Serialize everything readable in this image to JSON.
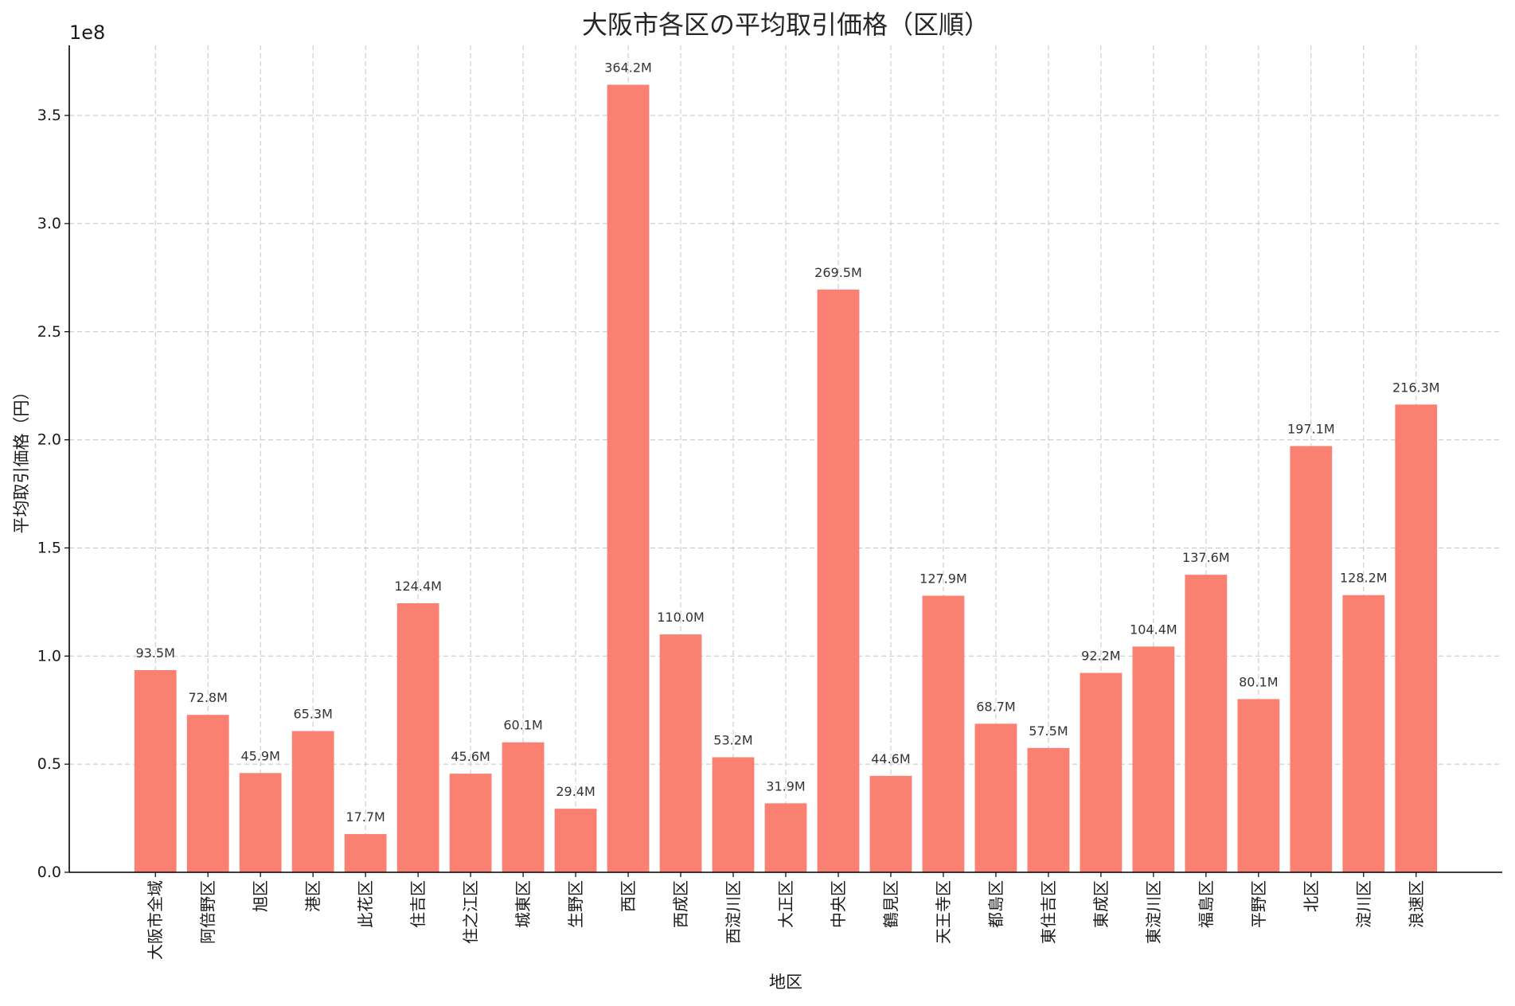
{
  "chart_data": {
    "type": "bar",
    "title": "大阪市各区の平均取引価格（区順）",
    "xlabel": "地区",
    "ylabel": "平均取引価格（円）",
    "y_offset_label": "1e8",
    "categories": [
      "大阪市全域",
      "阿倍野区",
      "旭区",
      "港区",
      "此花区",
      "住吉区",
      "住之江区",
      "城東区",
      "生野区",
      "西区",
      "西成区",
      "西淀川区",
      "大正区",
      "中央区",
      "鶴見区",
      "天王寺区",
      "都島区",
      "東住吉区",
      "東成区",
      "東淀川区",
      "福島区",
      "平野区",
      "北区",
      "淀川区",
      "浪速区"
    ],
    "values": [
      93500000,
      72800000,
      45900000,
      65300000,
      17700000,
      124400000,
      45600000,
      60100000,
      29400000,
      364200000,
      110000000,
      53200000,
      31900000,
      269500000,
      44600000,
      127900000,
      68700000,
      57500000,
      92200000,
      104400000,
      137600000,
      80100000,
      197100000,
      128200000,
      216300000
    ],
    "data_labels": [
      "93.5M",
      "72.8M",
      "45.9M",
      "65.3M",
      "17.7M",
      "124.4M",
      "45.6M",
      "60.1M",
      "29.4M",
      "364.2M",
      "110.0M",
      "53.2M",
      "31.9M",
      "269.5M",
      "44.6M",
      "127.9M",
      "68.7M",
      "57.5M",
      "92.2M",
      "104.4M",
      "137.6M",
      "80.1M",
      "197.1M",
      "128.2M",
      "216.3M"
    ],
    "yticks": [
      0,
      50000000,
      100000000,
      150000000,
      200000000,
      250000000,
      300000000,
      350000000
    ],
    "ytick_labels": [
      "0.0",
      "0.5",
      "1.0",
      "1.5",
      "2.0",
      "2.5",
      "3.0",
      "3.5"
    ],
    "ylim": [
      0,
      382410000
    ],
    "grid": true,
    "legend": "none",
    "bar_color": "#FA8072"
  }
}
